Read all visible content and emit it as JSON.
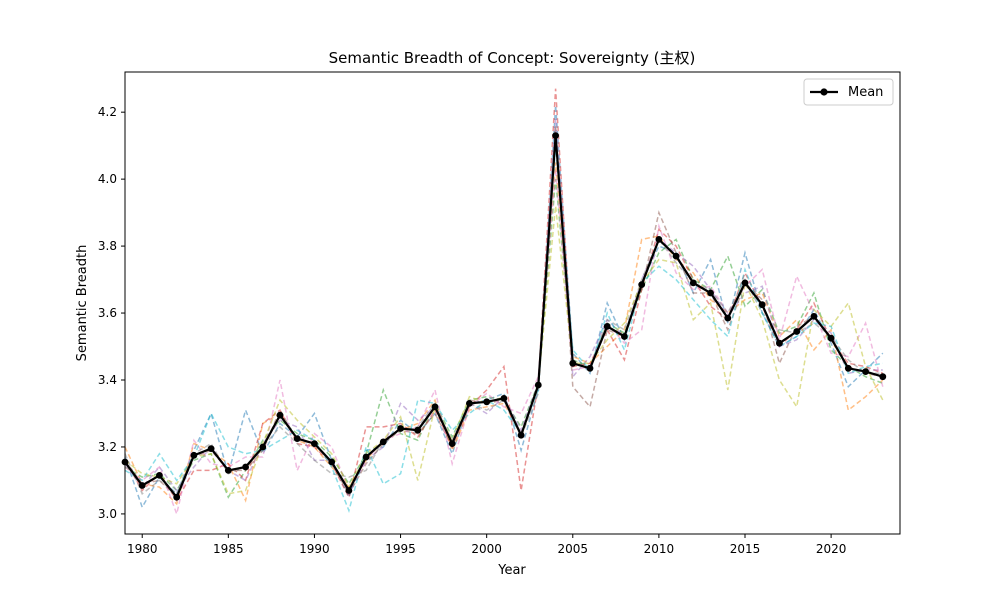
{
  "chart_data": {
    "type": "line",
    "title": "Semantic Breadth of Concept: Sovereignty (主权)",
    "xlabel": "Year",
    "ylabel": "Semantic Breadth",
    "xlim": [
      1979,
      2024
    ],
    "ylim": [
      2.94,
      4.32
    ],
    "xticks": [
      1980,
      1985,
      1990,
      1995,
      2000,
      2005,
      2010,
      2015,
      2020
    ],
    "yticks": [
      3.0,
      3.2,
      3.4,
      3.6,
      3.8,
      4.0,
      4.2
    ],
    "legend": {
      "position": "top-right",
      "entries": [
        "Mean"
      ]
    },
    "grid": false,
    "x": [
      1979,
      1980,
      1981,
      1982,
      1983,
      1984,
      1985,
      1986,
      1987,
      1988,
      1989,
      1990,
      1991,
      1992,
      1993,
      1994,
      1995,
      1996,
      1997,
      1998,
      1999,
      2000,
      2001,
      2002,
      2003,
      2004,
      2005,
      2006,
      2007,
      2008,
      2009,
      2010,
      2011,
      2012,
      2013,
      2014,
      2015,
      2016,
      2017,
      2018,
      2019,
      2020,
      2021,
      2022,
      2023
    ],
    "series": [
      {
        "name": "Mean",
        "color": "#000000",
        "values": [
          3.155,
          3.085,
          3.115,
          3.05,
          3.175,
          3.195,
          3.13,
          3.14,
          3.2,
          3.295,
          3.225,
          3.21,
          3.155,
          3.07,
          3.17,
          3.215,
          3.255,
          3.25,
          3.32,
          3.21,
          3.33,
          3.335,
          3.345,
          3.235,
          3.385,
          4.13,
          3.45,
          3.435,
          3.56,
          3.53,
          3.685,
          3.82,
          3.77,
          3.69,
          3.66,
          3.585,
          3.69,
          3.625,
          3.51,
          3.545,
          3.59,
          3.525,
          3.435,
          3.425,
          3.41
        ]
      },
      {
        "color": "#1f77b4",
        "values": [
          3.17,
          3.02,
          3.11,
          3.06,
          3.19,
          3.3,
          3.12,
          3.31,
          3.18,
          3.27,
          3.23,
          3.3,
          3.16,
          3.05,
          3.19,
          3.2,
          3.28,
          3.24,
          3.3,
          3.18,
          3.33,
          3.34,
          3.36,
          3.19,
          3.37,
          4.22,
          3.48,
          3.42,
          3.63,
          3.52,
          3.69,
          3.8,
          3.78,
          3.66,
          3.76,
          3.57,
          3.78,
          3.6,
          3.5,
          3.53,
          3.61,
          3.51,
          3.38,
          3.43,
          3.48
        ]
      },
      {
        "color": "#ff7f0e",
        "values": [
          3.2,
          3.09,
          3.08,
          3.03,
          3.21,
          3.19,
          3.15,
          3.04,
          3.27,
          3.3,
          3.22,
          3.2,
          3.14,
          3.08,
          3.16,
          3.22,
          3.25,
          3.27,
          3.34,
          3.19,
          3.31,
          3.32,
          3.33,
          3.24,
          3.38,
          4.05,
          3.47,
          3.45,
          3.5,
          3.55,
          3.82,
          3.83,
          3.76,
          3.72,
          3.64,
          3.6,
          3.64,
          3.66,
          3.53,
          3.58,
          3.49,
          3.55,
          3.31,
          3.35,
          3.4
        ]
      },
      {
        "color": "#2ca02c",
        "values": [
          3.14,
          3.11,
          3.12,
          3.07,
          3.16,
          3.18,
          3.05,
          3.13,
          3.22,
          3.28,
          3.24,
          3.22,
          3.17,
          3.09,
          3.18,
          3.37,
          3.24,
          3.22,
          3.33,
          3.23,
          3.34,
          3.35,
          3.34,
          3.26,
          3.39,
          4.0,
          3.46,
          3.44,
          3.57,
          3.54,
          3.67,
          3.78,
          3.82,
          3.7,
          3.67,
          3.77,
          3.62,
          3.67,
          3.54,
          3.56,
          3.66,
          3.49,
          3.44,
          3.41,
          3.39
        ]
      },
      {
        "color": "#d62728",
        "values": [
          3.16,
          3.07,
          3.12,
          3.04,
          3.13,
          3.13,
          3.15,
          3.1,
          3.27,
          3.31,
          3.21,
          3.2,
          3.15,
          3.05,
          3.26,
          3.26,
          3.27,
          3.23,
          3.31,
          3.2,
          3.32,
          3.37,
          3.44,
          3.07,
          3.39,
          4.27,
          3.44,
          3.45,
          3.55,
          3.46,
          3.67,
          3.85,
          3.8,
          3.7,
          3.62,
          3.58,
          3.72,
          3.62,
          3.5,
          3.55,
          3.63,
          3.52,
          3.45,
          3.44,
          3.42
        ]
      },
      {
        "color": "#9467bd",
        "values": [
          3.15,
          3.08,
          3.14,
          3.07,
          3.14,
          3.2,
          3.13,
          3.1,
          3.21,
          3.28,
          3.26,
          3.16,
          3.16,
          3.06,
          3.16,
          3.2,
          3.33,
          3.28,
          3.32,
          3.22,
          3.33,
          3.3,
          3.35,
          3.25,
          3.39,
          4.18,
          3.41,
          3.47,
          3.58,
          3.53,
          3.7,
          3.82,
          3.78,
          3.74,
          3.67,
          3.59,
          3.66,
          3.68,
          3.5,
          3.52,
          3.58,
          3.54,
          3.42,
          3.43,
          3.43
        ]
      },
      {
        "color": "#8c564b",
        "values": [
          3.16,
          3.09,
          3.1,
          3.05,
          3.17,
          3.19,
          3.13,
          3.13,
          3.19,
          3.31,
          3.22,
          3.21,
          3.15,
          3.06,
          3.15,
          3.21,
          3.25,
          3.24,
          3.3,
          3.2,
          3.34,
          3.33,
          3.34,
          3.24,
          3.38,
          4.16,
          3.38,
          3.32,
          3.55,
          3.53,
          3.67,
          3.9,
          3.78,
          3.66,
          3.66,
          3.55,
          3.69,
          3.64,
          3.45,
          3.56,
          3.59,
          3.52,
          3.44,
          3.42,
          3.41
        ]
      },
      {
        "color": "#e377c2",
        "values": [
          3.14,
          3.1,
          3.14,
          3.0,
          3.22,
          3.15,
          3.14,
          3.17,
          3.17,
          3.4,
          3.13,
          3.24,
          3.2,
          3.07,
          3.16,
          3.22,
          3.24,
          3.26,
          3.37,
          3.15,
          3.32,
          3.36,
          3.32,
          3.3,
          3.41,
          4.03,
          3.43,
          3.44,
          3.57,
          3.51,
          3.55,
          3.86,
          3.72,
          3.67,
          3.68,
          3.6,
          3.68,
          3.73,
          3.52,
          3.71,
          3.6,
          3.48,
          3.47,
          3.57,
          3.38
        ]
      },
      {
        "color": "#7f7f7f",
        "values": [
          3.18,
          3.06,
          3.1,
          3.06,
          3.18,
          3.21,
          3.12,
          3.14,
          3.2,
          3.26,
          3.21,
          3.16,
          3.12,
          3.11,
          3.13,
          3.22,
          3.25,
          3.26,
          3.33,
          3.21,
          3.33,
          3.31,
          3.34,
          3.23,
          3.36,
          4.13,
          3.46,
          3.43,
          3.58,
          3.55,
          3.7,
          3.82,
          3.75,
          3.69,
          3.67,
          3.6,
          3.7,
          3.6,
          3.55,
          3.54,
          3.57,
          3.53,
          3.46,
          3.42,
          3.42
        ]
      },
      {
        "color": "#bcbd22",
        "values": [
          3.16,
          3.12,
          3.11,
          3.09,
          3.17,
          3.18,
          3.06,
          3.07,
          3.21,
          3.34,
          3.28,
          3.23,
          3.18,
          3.08,
          3.18,
          3.22,
          3.29,
          3.1,
          3.32,
          3.22,
          3.35,
          3.33,
          3.35,
          3.23,
          3.39,
          3.92,
          3.45,
          3.45,
          3.52,
          3.57,
          3.69,
          3.76,
          3.75,
          3.58,
          3.63,
          3.37,
          3.69,
          3.58,
          3.4,
          3.32,
          3.61,
          3.56,
          3.63,
          3.44,
          3.34
        ]
      },
      {
        "color": "#17becf",
        "values": [
          3.13,
          3.1,
          3.18,
          3.1,
          3.17,
          3.3,
          3.2,
          3.18,
          3.19,
          3.22,
          3.25,
          3.22,
          3.14,
          3.01,
          3.2,
          3.09,
          3.12,
          3.34,
          3.33,
          3.25,
          3.3,
          3.34,
          3.31,
          3.24,
          3.37,
          4.1,
          3.49,
          3.43,
          3.6,
          3.49,
          3.69,
          3.74,
          3.7,
          3.64,
          3.58,
          3.53,
          3.73,
          3.6,
          3.5,
          3.53,
          3.57,
          3.56,
          3.42,
          3.44,
          3.45
        ]
      }
    ]
  }
}
